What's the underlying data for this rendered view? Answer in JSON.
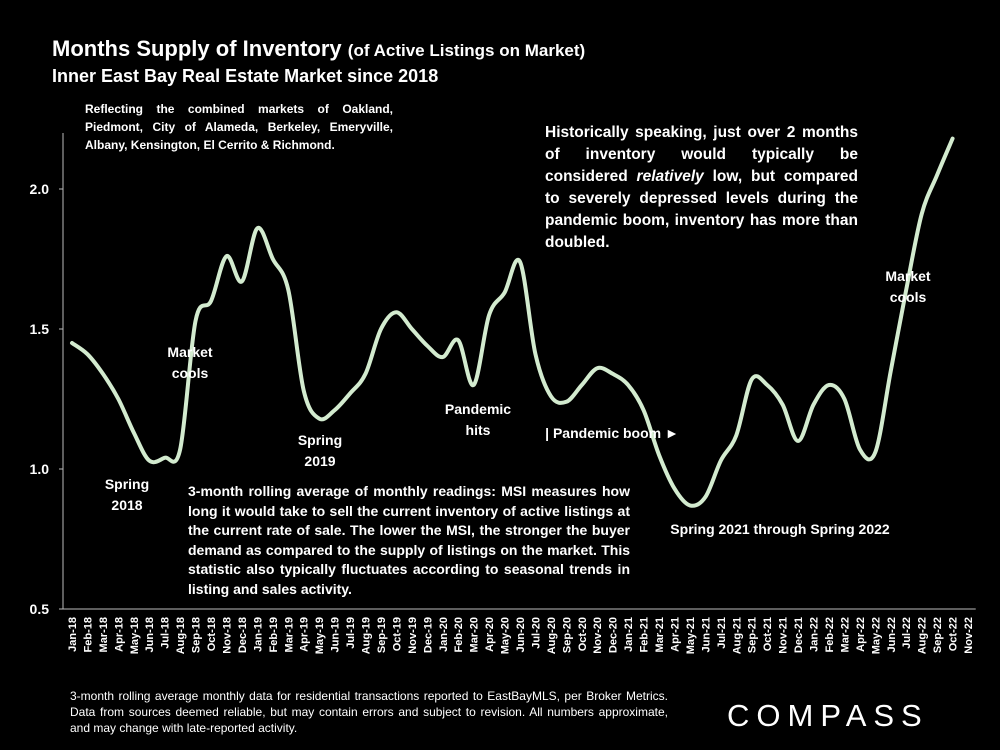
{
  "chart_data": {
    "type": "line",
    "title": "Months Supply of Inventory",
    "title_suffix": "(of Active Listings on Market)",
    "subtitle": "Inner East Bay Real Estate Market since 2018",
    "markets_note": "Reflecting the combined markets of Oakland, Piedmont, City of Alameda, Berkeley, Emeryville, Albany, Kensington, El Cerrito & Richmond.",
    "insight_note": {
      "before": "Historically speaking, just over 2 months of inventory would typically be considered",
      "emphasis": "relatively",
      "after": "low, but compared to severely depressed levels during the pandemic boom, inventory has more than doubled."
    },
    "method_note": "3-month rolling average of monthly readings: MSI measures how long it would take to sell the current inventory of active listings at the current rate of sale. The lower the MSI, the stronger the buyer demand as compared to the supply of listings on the market. This statistic also typically fluctuates according to seasonal trends in listing and sales activity.",
    "footer": "3-month rolling average monthly data for residential transactions reported to EastBayMLS, per Broker Metrics. Data from sources deemed reliable, but may contain errors and subject to revision. All numbers approximate, and may change with late-reported activity.",
    "logo": "COMPASS",
    "annotations": [
      {
        "lines": [
          "Spring",
          "2018"
        ]
      },
      {
        "lines": [
          "Market",
          "cools"
        ]
      },
      {
        "lines": [
          "Spring",
          "2019"
        ]
      },
      {
        "lines": [
          "Pandemic",
          "hits"
        ]
      },
      {
        "lines": [
          "| Pandemic boom ►"
        ]
      },
      {
        "lines": [
          "Spring 2021 through Spring 2022"
        ]
      },
      {
        "lines": [
          "Market",
          "cools"
        ]
      }
    ],
    "categories": [
      "Jan-18",
      "Feb-18",
      "Mar-18",
      "Apr-18",
      "May-18",
      "Jun-18",
      "Jul-18",
      "Aug-18",
      "Sep-18",
      "Oct-18",
      "Nov-18",
      "Dec-18",
      "Jan-19",
      "Feb-19",
      "Mar-19",
      "Apr-19",
      "May-19",
      "Jun-19",
      "Jul-19",
      "Aug-19",
      "Sep-19",
      "Oct-19",
      "Nov-19",
      "Dec-19",
      "Jan-20",
      "Feb-20",
      "Mar-20",
      "Apr-20",
      "May-20",
      "Jun-20",
      "Jul-20",
      "Aug-20",
      "Sep-20",
      "Oct-20",
      "Nov-20",
      "Dec-20",
      "Jan-21",
      "Feb-21",
      "Mar-21",
      "Apr-21",
      "May-21",
      "Jun-21",
      "Jul-21",
      "Aug-21",
      "Sep-21",
      "Oct-21",
      "Nov-21",
      "Dec-21",
      "Jan-22",
      "Feb-22",
      "Mar-22",
      "Apr-22",
      "May-22",
      "Jun-22",
      "Jul-22",
      "Aug-22",
      "Sep-22",
      "Oct-22",
      "Nov-22"
    ],
    "values": [
      1.45,
      1.41,
      1.34,
      1.25,
      1.13,
      1.03,
      1.04,
      1.07,
      1.53,
      1.6,
      1.76,
      1.67,
      1.86,
      1.75,
      1.64,
      1.28,
      1.18,
      1.21,
      1.27,
      1.34,
      1.5,
      1.56,
      1.5,
      1.44,
      1.4,
      1.46,
      1.3,
      1.55,
      1.63,
      1.74,
      1.41,
      1.26,
      1.24,
      1.3,
      1.36,
      1.34,
      1.3,
      1.21,
      1.05,
      0.93,
      0.87,
      0.9,
      1.03,
      1.12,
      1.32,
      1.3,
      1.23,
      1.1,
      1.23,
      1.3,
      1.25,
      1.07,
      1.06,
      1.35,
      1.64,
      1.91,
      2.05,
      2.18,
      null
    ],
    "color": "#d3ebcf",
    "ylim": [
      0.5,
      2.2
    ],
    "yticks": [
      0.5,
      {
        "value": 1.0,
        "label": "1.0"
      },
      1.5,
      {
        "value": 2.0,
        "label": "2.0"
      }
    ]
  }
}
